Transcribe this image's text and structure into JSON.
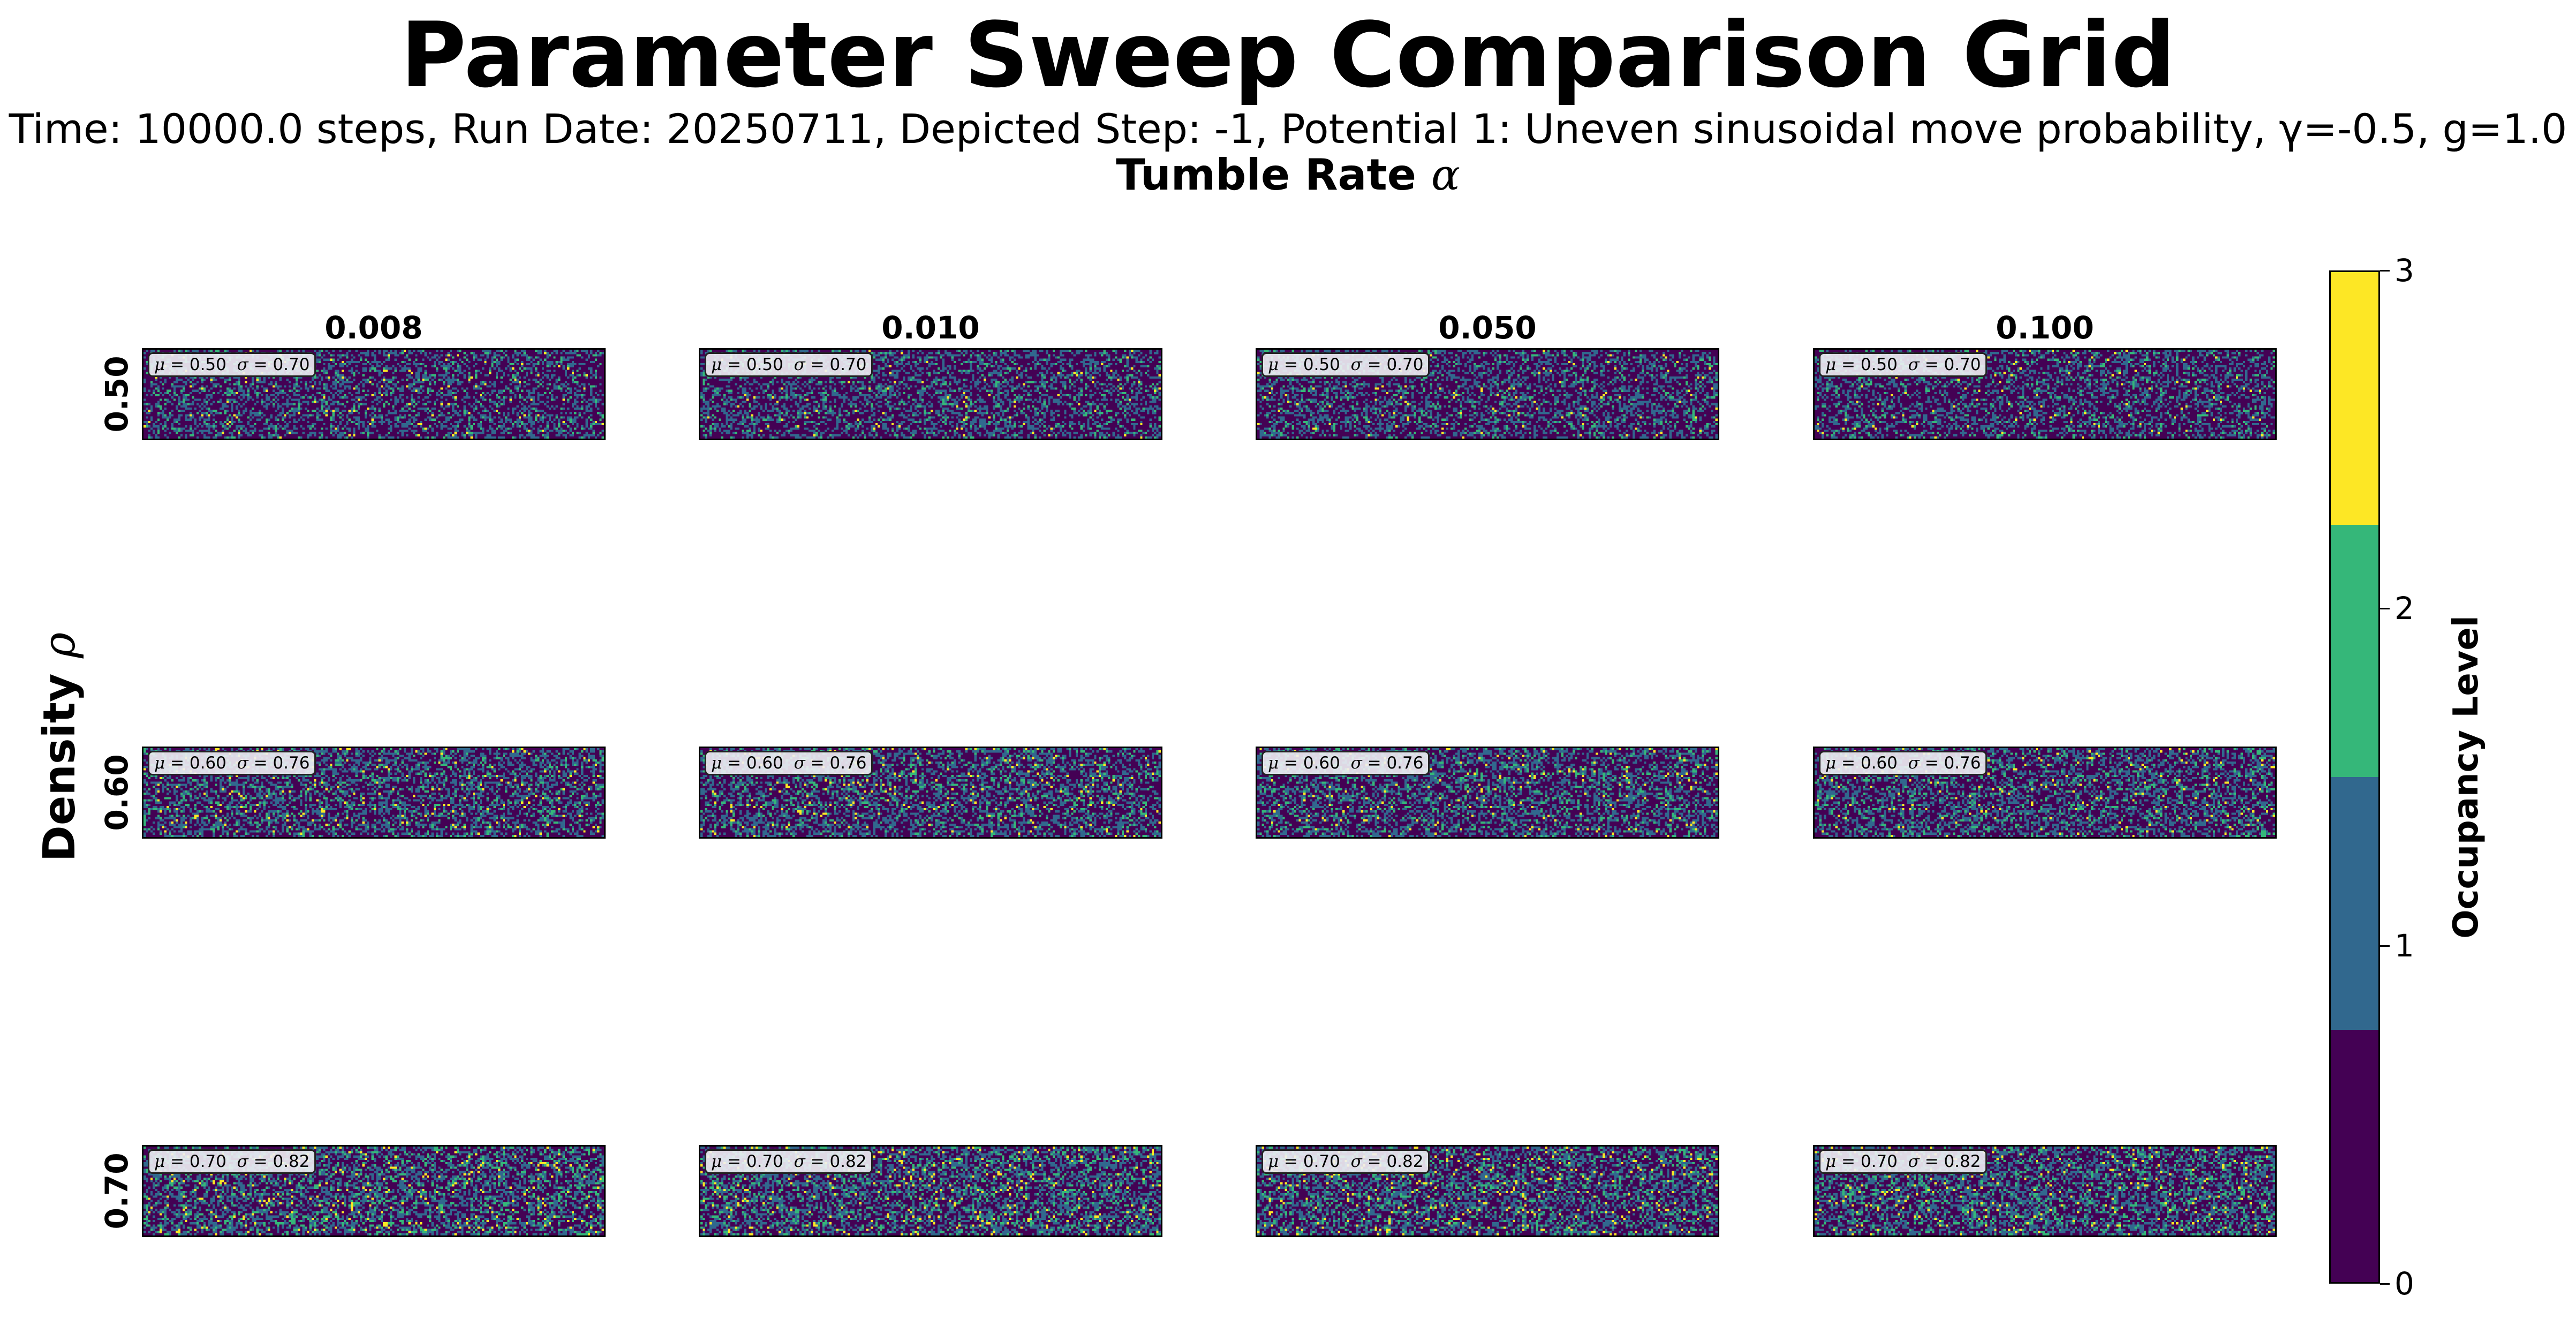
{
  "title": "Parameter Sweep Comparison Grid",
  "subtitle": "Time: 10000.0 steps, Run Date: 20250711, Depicted Step: -1, Potential 1: Uneven sinusoidal move probability, γ=-0.5, g=1.0",
  "chart_data": {
    "type": "heatmap",
    "x_axis": {
      "label": "Tumble Rate",
      "symbol": "α",
      "values": [
        "0.008",
        "0.010",
        "0.050",
        "0.100"
      ]
    },
    "y_axis": {
      "label": "Density",
      "symbol": "ρ",
      "values": [
        "0.50",
        "0.60",
        "0.70"
      ]
    },
    "panels": [
      [
        {
          "mu": "0.50",
          "sigma": "0.70"
        },
        {
          "mu": "0.50",
          "sigma": "0.70"
        },
        {
          "mu": "0.50",
          "sigma": "0.70"
        },
        {
          "mu": "0.50",
          "sigma": "0.70"
        }
      ],
      [
        {
          "mu": "0.60",
          "sigma": "0.76"
        },
        {
          "mu": "0.60",
          "sigma": "0.76"
        },
        {
          "mu": "0.60",
          "sigma": "0.76"
        },
        {
          "mu": "0.60",
          "sigma": "0.76"
        }
      ],
      [
        {
          "mu": "0.70",
          "sigma": "0.82"
        },
        {
          "mu": "0.70",
          "sigma": "0.82"
        },
        {
          "mu": "0.70",
          "sigma": "0.82"
        },
        {
          "mu": "0.70",
          "sigma": "0.82"
        }
      ]
    ],
    "colorbar": {
      "label": "Occupancy Level",
      "ticks": [
        "0",
        "1",
        "2",
        "3"
      ],
      "range": [
        0,
        3
      ],
      "colors": [
        "#440154",
        "#31688e",
        "#35b779",
        "#fde725"
      ]
    }
  }
}
